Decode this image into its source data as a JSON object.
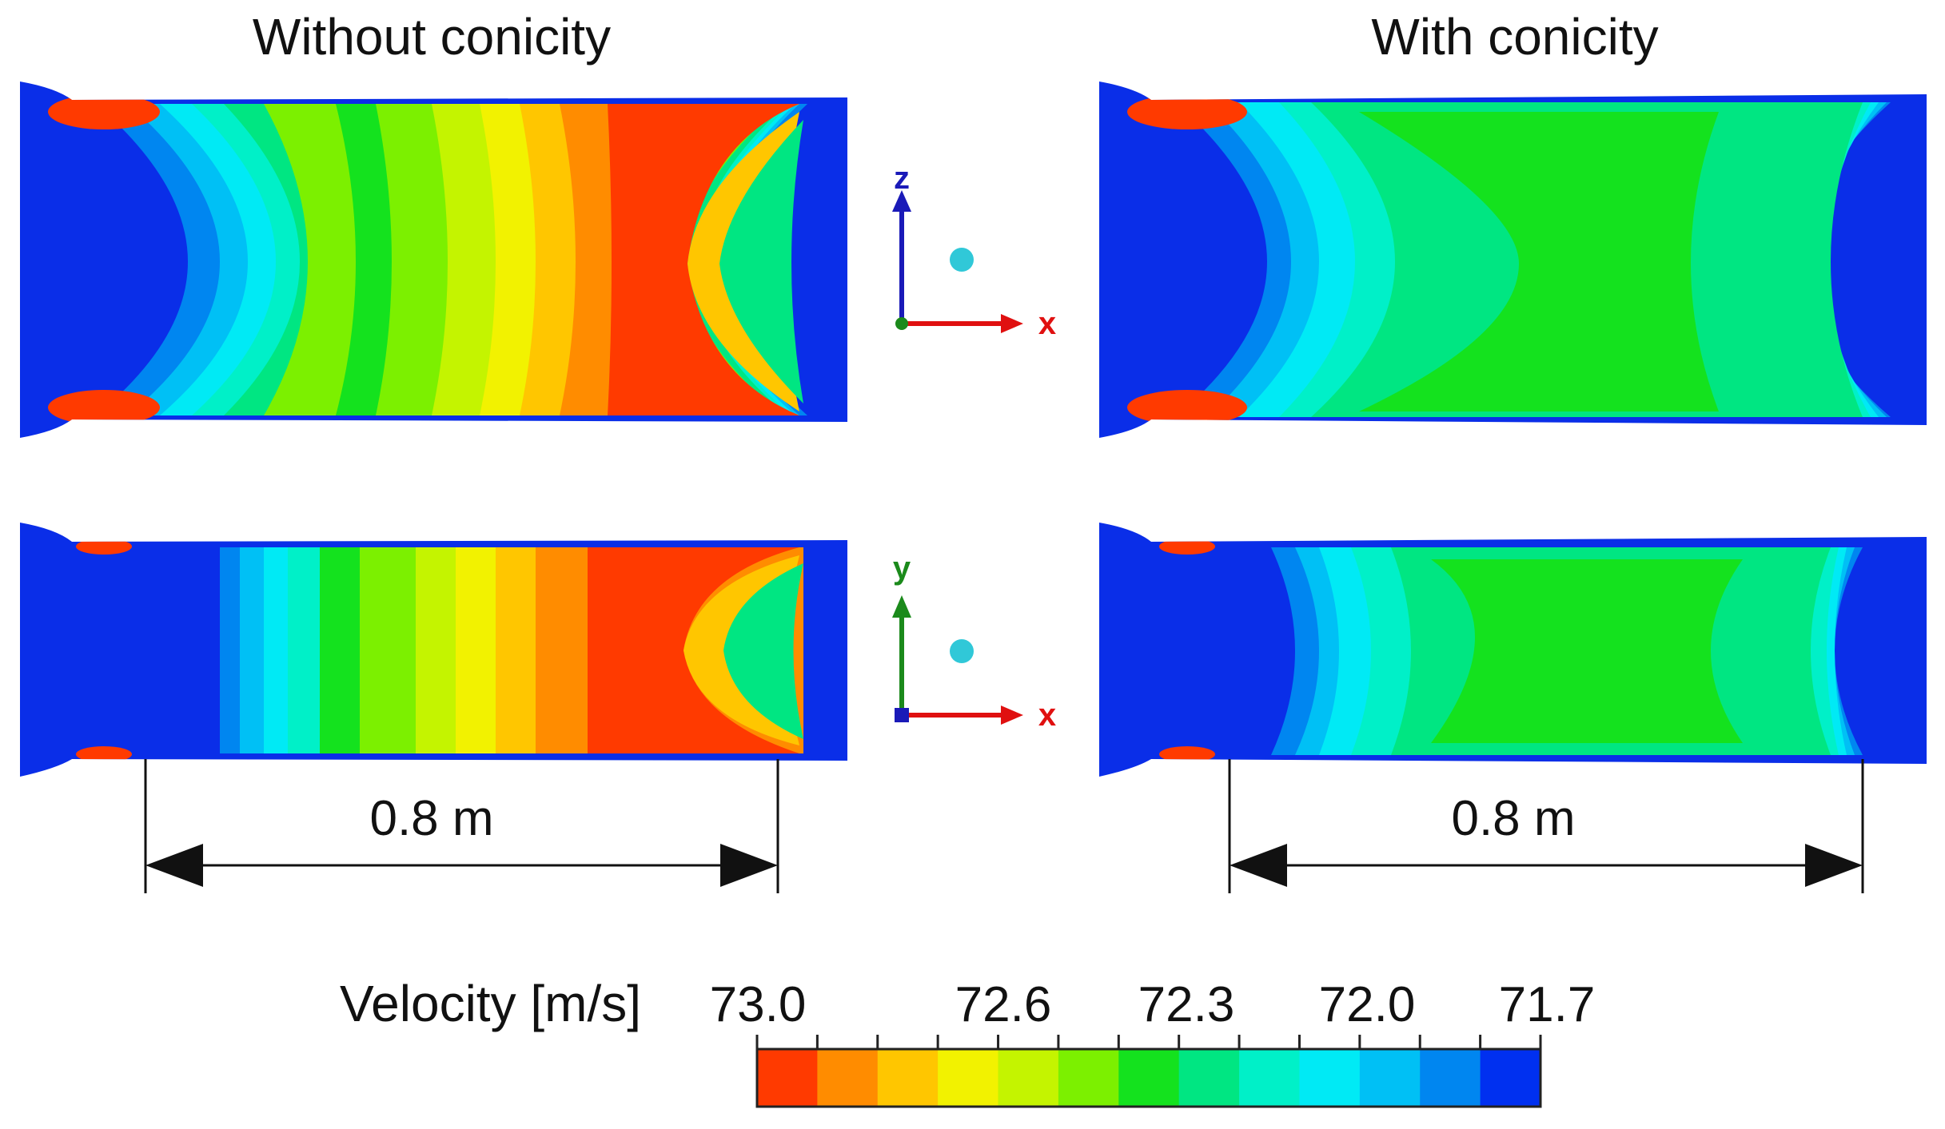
{
  "panels": {
    "left_title": "Without conicity",
    "right_title": "With conicity"
  },
  "axes": {
    "top": {
      "vertical": "z",
      "horizontal": "x"
    },
    "bottom": {
      "vertical": "y",
      "horizontal": "x"
    }
  },
  "dimension": {
    "left_label": "0.8 m",
    "right_label": "0.8 m"
  },
  "legend": {
    "title": "Velocity [m/s]",
    "tick_labels": [
      "73.0",
      "72.6",
      "72.3",
      "72.0",
      "71.7"
    ],
    "colors": [
      "#ff3a00",
      "#ff8c00",
      "#ffc600",
      "#f2f200",
      "#c4f400",
      "#7cf000",
      "#14e21e",
      "#00e682",
      "#00f0c8",
      "#00eaf5",
      "#00c0f5",
      "#0086f0",
      "#0030f0"
    ]
  },
  "colors": {
    "background_flow": "#0a2ee8",
    "red": "#ff3a00",
    "green": "#14e21e"
  }
}
